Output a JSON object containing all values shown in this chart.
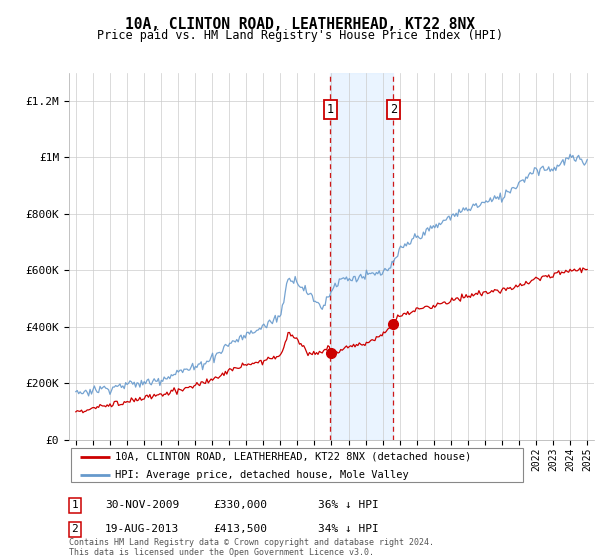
{
  "title": "10A, CLINTON ROAD, LEATHERHEAD, KT22 8NX",
  "subtitle": "Price paid vs. HM Land Registry's House Price Index (HPI)",
  "legend_line1": "10A, CLINTON ROAD, LEATHERHEAD, KT22 8NX (detached house)",
  "legend_line2": "HPI: Average price, detached house, Mole Valley",
  "transaction1_label": "1",
  "transaction1_date": "30-NOV-2009",
  "transaction1_price": "£330,000",
  "transaction1_hpi": "36% ↓ HPI",
  "transaction1_year": 2009.92,
  "transaction2_label": "2",
  "transaction2_date": "19-AUG-2013",
  "transaction2_price": "£413,500",
  "transaction2_hpi": "34% ↓ HPI",
  "transaction2_year": 2013.63,
  "red_color": "#cc0000",
  "blue_color": "#6699cc",
  "shade_color": "#ddeeff",
  "footer": "Contains HM Land Registry data © Crown copyright and database right 2024.\nThis data is licensed under the Open Government Licence v3.0.",
  "ylim": [
    0,
    1300000
  ],
  "yticks": [
    0,
    200000,
    400000,
    600000,
    800000,
    1000000,
    1200000
  ],
  "ytick_labels": [
    "£0",
    "£200K",
    "£400K",
    "£600K",
    "£800K",
    "£1M",
    "£1.2M"
  ],
  "hpi_keypoints_x": [
    1995,
    1996,
    1997,
    1998,
    1999,
    2000,
    2001,
    2002,
    2003,
    2004,
    2005,
    2006,
    2007,
    2007.5,
    2008,
    2008.5,
    2009,
    2009.5,
    2010,
    2010.5,
    2011,
    2012,
    2013,
    2013.63,
    2014,
    2015,
    2016,
    2017,
    2018,
    2019,
    2020,
    2021,
    2022,
    2023,
    2024,
    2025
  ],
  "hpi_keypoints_y": [
    165000,
    175000,
    185000,
    195000,
    200000,
    215000,
    240000,
    255000,
    290000,
    340000,
    370000,
    400000,
    440000,
    580000,
    560000,
    530000,
    490000,
    470000,
    530000,
    570000,
    570000,
    580000,
    590000,
    620000,
    670000,
    720000,
    750000,
    790000,
    820000,
    840000,
    860000,
    910000,
    960000,
    960000,
    1000000,
    980000
  ],
  "red_keypoints_x": [
    1995,
    1996,
    1997,
    1998,
    1999,
    2000,
    2001,
    2002,
    2003,
    2004,
    2005,
    2006,
    2007,
    2007.5,
    2008,
    2008.5,
    2009,
    2009.92,
    2010,
    2011,
    2012,
    2013,
    2013.63,
    2014,
    2015,
    2016,
    2017,
    2018,
    2019,
    2020,
    2021,
    2022,
    2023,
    2024,
    2025
  ],
  "red_keypoints_y": [
    100000,
    110000,
    125000,
    135000,
    145000,
    160000,
    175000,
    190000,
    215000,
    240000,
    265000,
    280000,
    300000,
    380000,
    350000,
    320000,
    300000,
    330000,
    300000,
    330000,
    340000,
    370000,
    413500,
    440000,
    460000,
    475000,
    490000,
    510000,
    520000,
    530000,
    545000,
    570000,
    585000,
    600000,
    600000
  ]
}
